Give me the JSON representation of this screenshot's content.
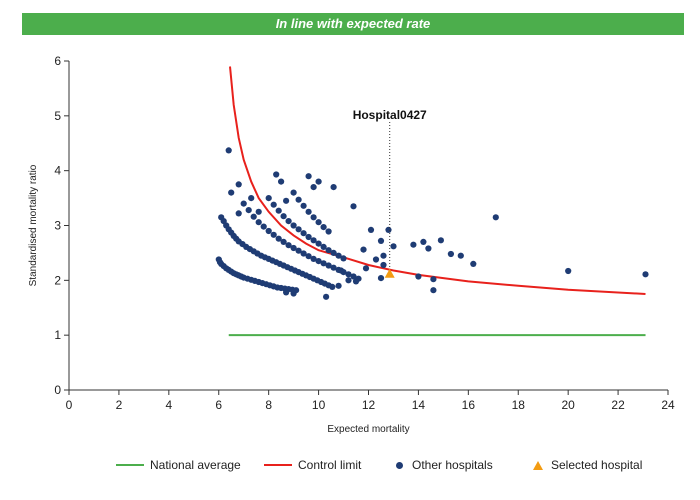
{
  "banner": {
    "title": "In line with expected rate"
  },
  "colors": {
    "banner": "#4cae4c",
    "national_average": "#4cae4c",
    "control_limit": "#e8211c",
    "other_hospitals": "#1f3c74",
    "selected_hospital": "#f39c12"
  },
  "legend": {
    "national_average": "National average",
    "control_limit": "Control limit",
    "other_hospitals": "Other hospitals",
    "selected_hospital": "Selected hospital"
  },
  "chart_data": {
    "type": "scatter",
    "title": "In line with expected rate",
    "xlabel": "Expected mortality",
    "ylabel": "Standardised mortality ratio",
    "xlim": [
      0,
      24
    ],
    "ylim": [
      0,
      6
    ],
    "xticks": [
      0,
      2,
      4,
      6,
      8,
      10,
      12,
      14,
      16,
      18,
      20,
      22,
      24
    ],
    "yticks": [
      0,
      1,
      2,
      3,
      4,
      5,
      6
    ],
    "grid": false,
    "legend_position": "bottom",
    "annotation": {
      "label": "Hospital0427",
      "x": 12.85,
      "y": 2.12
    },
    "national_average": {
      "name": "National average",
      "x": [
        6.4,
        23.1
      ],
      "y": [
        1.0,
        1.0
      ]
    },
    "control_limit": {
      "name": "Control limit",
      "x": [
        6.45,
        6.6,
        6.8,
        7.0,
        7.3,
        7.6,
        8.0,
        8.5,
        9.0,
        9.5,
        10.0,
        11.0,
        12.0,
        13.0,
        14.0,
        16.0,
        18.0,
        20.0,
        23.1
      ],
      "y": [
        5.9,
        5.2,
        4.6,
        4.2,
        3.8,
        3.5,
        3.25,
        3.0,
        2.82,
        2.67,
        2.55,
        2.42,
        2.28,
        2.18,
        2.1,
        1.98,
        1.9,
        1.83,
        1.75
      ]
    },
    "selected_hospital": {
      "name": "Selected hospital",
      "x": [
        12.85
      ],
      "y": [
        2.12
      ]
    },
    "other_hospitals": {
      "name": "Other hospitals",
      "points": [
        [
          6.0,
          2.38
        ],
        [
          6.05,
          2.33
        ],
        [
          6.1,
          2.3
        ],
        [
          6.2,
          2.26
        ],
        [
          6.3,
          2.22
        ],
        [
          6.4,
          2.19
        ],
        [
          6.5,
          2.16
        ],
        [
          6.6,
          2.13
        ],
        [
          6.7,
          2.11
        ],
        [
          6.8,
          2.09
        ],
        [
          6.9,
          2.07
        ],
        [
          7.0,
          2.05
        ],
        [
          7.15,
          2.03
        ],
        [
          7.3,
          2.01
        ],
        [
          7.45,
          1.99
        ],
        [
          7.6,
          1.97
        ],
        [
          7.75,
          1.95
        ],
        [
          7.9,
          1.93
        ],
        [
          8.05,
          1.91
        ],
        [
          8.2,
          1.89
        ],
        [
          8.35,
          1.87
        ],
        [
          8.5,
          1.86
        ],
        [
          8.65,
          1.85
        ],
        [
          8.8,
          1.84
        ],
        [
          8.95,
          1.83
        ],
        [
          9.1,
          1.82
        ],
        [
          6.1,
          3.15
        ],
        [
          6.2,
          3.08
        ],
        [
          6.3,
          3.0
        ],
        [
          6.4,
          2.93
        ],
        [
          6.5,
          2.87
        ],
        [
          6.6,
          2.81
        ],
        [
          6.7,
          2.76
        ],
        [
          6.8,
          2.71
        ],
        [
          6.95,
          2.66
        ],
        [
          7.1,
          2.61
        ],
        [
          7.25,
          2.57
        ],
        [
          7.4,
          2.53
        ],
        [
          7.55,
          2.49
        ],
        [
          7.7,
          2.45
        ],
        [
          7.85,
          2.42
        ],
        [
          8.0,
          2.39
        ],
        [
          8.15,
          2.36
        ],
        [
          8.3,
          2.33
        ],
        [
          8.45,
          2.3
        ],
        [
          8.6,
          2.27
        ],
        [
          8.75,
          2.24
        ],
        [
          8.9,
          2.21
        ],
        [
          9.05,
          2.18
        ],
        [
          9.2,
          2.15
        ],
        [
          9.35,
          2.12
        ],
        [
          9.5,
          2.09
        ],
        [
          9.65,
          2.06
        ],
        [
          9.8,
          2.03
        ],
        [
          9.95,
          2.0
        ],
        [
          10.1,
          1.97
        ],
        [
          10.25,
          1.94
        ],
        [
          10.4,
          1.91
        ],
        [
          10.55,
          1.88
        ],
        [
          7.0,
          3.4
        ],
        [
          7.2,
          3.28
        ],
        [
          7.4,
          3.16
        ],
        [
          7.6,
          3.06
        ],
        [
          7.8,
          2.98
        ],
        [
          8.0,
          2.9
        ],
        [
          8.2,
          2.83
        ],
        [
          8.4,
          2.76
        ],
        [
          8.6,
          2.7
        ],
        [
          8.8,
          2.64
        ],
        [
          9.0,
          2.59
        ],
        [
          9.2,
          2.54
        ],
        [
          9.4,
          2.49
        ],
        [
          9.6,
          2.44
        ],
        [
          9.8,
          2.39
        ],
        [
          10.0,
          2.35
        ],
        [
          10.2,
          2.31
        ],
        [
          10.4,
          2.27
        ],
        [
          10.6,
          2.23
        ],
        [
          10.8,
          2.19
        ],
        [
          11.0,
          2.15
        ],
        [
          11.2,
          2.11
        ],
        [
          11.4,
          2.07
        ],
        [
          11.6,
          2.03
        ],
        [
          8.0,
          3.5
        ],
        [
          8.2,
          3.38
        ],
        [
          8.4,
          3.27
        ],
        [
          8.6,
          3.17
        ],
        [
          8.8,
          3.08
        ],
        [
          9.0,
          3.0
        ],
        [
          9.2,
          2.93
        ],
        [
          9.4,
          2.86
        ],
        [
          9.6,
          2.79
        ],
        [
          9.8,
          2.73
        ],
        [
          10.0,
          2.67
        ],
        [
          10.2,
          2.61
        ],
        [
          10.4,
          2.55
        ],
        [
          10.6,
          2.5
        ],
        [
          10.8,
          2.45
        ],
        [
          11.0,
          2.4
        ],
        [
          9.0,
          3.6
        ],
        [
          9.2,
          3.47
        ],
        [
          9.4,
          3.36
        ],
        [
          9.6,
          3.25
        ],
        [
          9.8,
          3.15
        ],
        [
          10.0,
          3.06
        ],
        [
          10.2,
          2.97
        ],
        [
          10.4,
          2.89
        ],
        [
          6.4,
          4.37
        ],
        [
          6.5,
          3.6
        ],
        [
          6.8,
          3.75
        ],
        [
          6.8,
          3.22
        ],
        [
          7.3,
          3.5
        ],
        [
          7.6,
          3.25
        ],
        [
          8.3,
          3.93
        ],
        [
          8.5,
          3.8
        ],
        [
          8.7,
          3.45
        ],
        [
          9.6,
          3.9
        ],
        [
          9.8,
          3.7
        ],
        [
          10.0,
          3.8
        ],
        [
          10.6,
          3.7
        ],
        [
          11.4,
          3.35
        ],
        [
          12.8,
          2.92
        ],
        [
          12.1,
          2.92
        ],
        [
          12.5,
          2.72
        ],
        [
          12.6,
          2.45
        ],
        [
          12.3,
          2.38
        ],
        [
          12.6,
          2.28
        ],
        [
          13.0,
          2.62
        ],
        [
          13.8,
          2.65
        ],
        [
          14.2,
          2.7
        ],
        [
          14.4,
          2.58
        ],
        [
          14.9,
          2.73
        ],
        [
          14.0,
          2.07
        ],
        [
          14.6,
          2.02
        ],
        [
          14.6,
          1.82
        ],
        [
          15.3,
          2.48
        ],
        [
          15.7,
          2.45
        ],
        [
          16.2,
          2.3
        ],
        [
          17.1,
          3.15
        ],
        [
          20.0,
          2.17
        ],
        [
          23.1,
          2.11
        ],
        [
          12.5,
          2.04
        ],
        [
          11.9,
          2.22
        ],
        [
          11.2,
          2.0
        ],
        [
          11.5,
          1.98
        ],
        [
          10.9,
          2.18
        ],
        [
          10.3,
          1.7
        ],
        [
          10.8,
          1.9
        ],
        [
          8.7,
          1.78
        ],
        [
          9.0,
          1.76
        ],
        [
          11.8,
          2.56
        ]
      ]
    }
  }
}
